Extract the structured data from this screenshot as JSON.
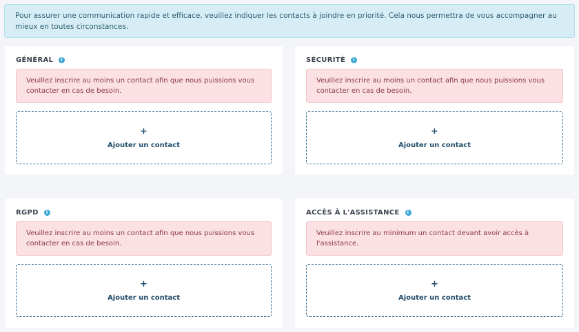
{
  "banner": "Pour assurer une communication rapide et efficace, veuillez indiquer les contacts à joindre en priorité. Cela nous permettra de vous accompagner au mieux en toutes circonstances.",
  "cards": [
    {
      "title": "GÉNÉRAL",
      "alert": "Veuillez inscrire au moins un contact afin que nous puissions vous contacter en cas de besoin.",
      "add_icon": "+",
      "add_label": "Ajouter un contact"
    },
    {
      "title": "SÉCURITÉ",
      "alert": "Veuillez inscrire au moins un contact afin que nous puissions vous contacter en cas de besoin.",
      "add_icon": "+",
      "add_label": "Ajouter un contact"
    },
    {
      "title": "RGPD",
      "alert": "Veuillez inscrire au moins un contact afin que nous puissions vous contacter en cas de besoin.",
      "add_icon": "+",
      "add_label": "Ajouter un contact"
    },
    {
      "title": "ACCÈS À L'ASSISTANCE",
      "alert": "Veuillez inscrire au minimum un contact devant avoir accès à l'assistance.",
      "add_icon": "+",
      "add_label": "Ajouter un contact"
    }
  ],
  "info_icon": "i",
  "colors": {
    "accent": "#3ba6d6",
    "alert_bg": "#fbe0e4",
    "banner_bg": "#d7edf5"
  }
}
